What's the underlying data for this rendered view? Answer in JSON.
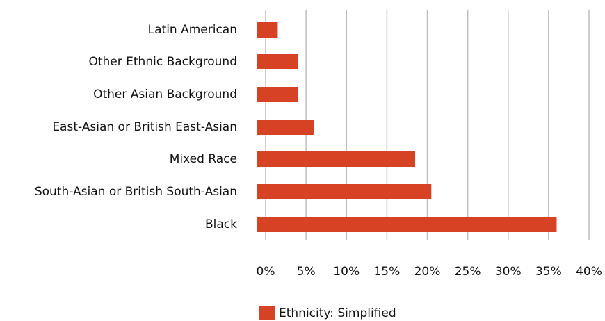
{
  "colors": {
    "bar": "#D64224",
    "grid": "#BDBDBD",
    "text": "#111111"
  },
  "chart_data": {
    "type": "bar",
    "orientation": "horizontal",
    "categories": [
      "Latin American",
      "Other Ethnic Background",
      "Other Asian Background",
      "East-Asian or British East-Asian",
      "Mixed Race",
      "South-Asian or British South-Asian",
      "Black"
    ],
    "series": [
      {
        "name": "Ethnicity: Simplified",
        "values": [
          1.5,
          4.0,
          4.0,
          6.0,
          18.5,
          20.5,
          36.0
        ]
      }
    ],
    "xlim": [
      0,
      40
    ],
    "xticks": [
      0,
      5,
      10,
      15,
      20,
      25,
      30,
      35,
      40
    ],
    "xtick_labels": [
      "0%",
      "5%",
      "10%",
      "15%",
      "20%",
      "25%",
      "30%",
      "35%",
      "40%"
    ],
    "grid": "vertical",
    "legend": "bottom-center"
  }
}
